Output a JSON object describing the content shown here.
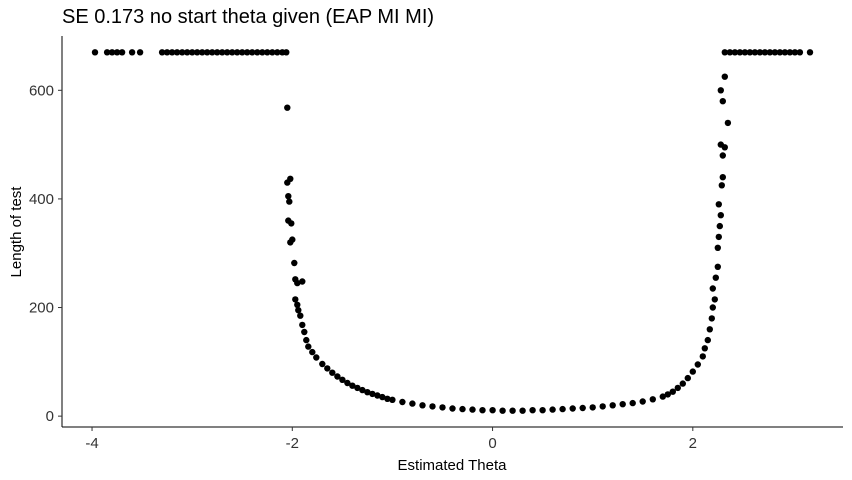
{
  "chart_data": {
    "type": "scatter",
    "title": "SE 0.173 no start theta given (EAP MI MI)",
    "xlabel": "Estimated Theta",
    "ylabel": "Length of test",
    "xlim": [
      -4.3,
      3.5
    ],
    "ylim": [
      -20,
      700
    ],
    "xticks": [
      "-4",
      "-2",
      "0",
      "2"
    ],
    "yticks": [
      "0",
      "200",
      "400",
      "600"
    ],
    "grid": false,
    "legend": "none",
    "point_color": "#000000",
    "shape": "U-shaped: test length near 10 for theta in [-1, 1], rising steeply near theta = -2 and theta = 2, capped at 670 beyond",
    "points": [
      [
        -3.97,
        670
      ],
      [
        -3.85,
        670
      ],
      [
        -3.8,
        670
      ],
      [
        -3.75,
        670
      ],
      [
        -3.7,
        670
      ],
      [
        -3.6,
        670
      ],
      [
        -3.52,
        670
      ],
      [
        -3.3,
        670
      ],
      [
        -3.25,
        670
      ],
      [
        -3.2,
        670
      ],
      [
        -3.15,
        670
      ],
      [
        -3.1,
        670
      ],
      [
        -3.05,
        670
      ],
      [
        -3.0,
        670
      ],
      [
        -2.95,
        670
      ],
      [
        -2.9,
        670
      ],
      [
        -2.85,
        670
      ],
      [
        -2.8,
        670
      ],
      [
        -2.75,
        670
      ],
      [
        -2.7,
        670
      ],
      [
        -2.65,
        670
      ],
      [
        -2.6,
        670
      ],
      [
        -2.55,
        670
      ],
      [
        -2.5,
        670
      ],
      [
        -2.45,
        670
      ],
      [
        -2.4,
        670
      ],
      [
        -2.35,
        670
      ],
      [
        -2.3,
        670
      ],
      [
        -2.25,
        670
      ],
      [
        -2.2,
        670
      ],
      [
        -2.15,
        670
      ],
      [
        -2.1,
        670
      ],
      [
        -2.06,
        670
      ],
      [
        -2.05,
        568
      ],
      [
        -2.05,
        430
      ],
      [
        -2.02,
        437
      ],
      [
        -2.04,
        405
      ],
      [
        -2.03,
        395
      ],
      [
        -2.04,
        360
      ],
      [
        -2.01,
        355
      ],
      [
        -2.0,
        325
      ],
      [
        -2.02,
        320
      ],
      [
        -1.98,
        282
      ],
      [
        -1.97,
        252
      ],
      [
        -1.95,
        245
      ],
      [
        -1.9,
        248
      ],
      [
        -1.97,
        215
      ],
      [
        -1.95,
        205
      ],
      [
        -1.94,
        195
      ],
      [
        -1.92,
        185
      ],
      [
        -1.9,
        168
      ],
      [
        -1.88,
        155
      ],
      [
        -1.86,
        140
      ],
      [
        -1.84,
        128
      ],
      [
        -1.8,
        118
      ],
      [
        -1.76,
        108
      ],
      [
        -1.7,
        96
      ],
      [
        -1.65,
        88
      ],
      [
        -1.6,
        80
      ],
      [
        -1.55,
        73
      ],
      [
        -1.5,
        67
      ],
      [
        -1.45,
        61
      ],
      [
        -1.4,
        56
      ],
      [
        -1.35,
        52
      ],
      [
        -1.3,
        48
      ],
      [
        -1.25,
        44
      ],
      [
        -1.2,
        41
      ],
      [
        -1.15,
        38
      ],
      [
        -1.1,
        35
      ],
      [
        -1.05,
        32
      ],
      [
        -1.0,
        30
      ],
      [
        -0.9,
        26
      ],
      [
        -0.8,
        23
      ],
      [
        -0.7,
        20
      ],
      [
        -0.6,
        18
      ],
      [
        -0.5,
        16
      ],
      [
        -0.4,
        14
      ],
      [
        -0.3,
        13
      ],
      [
        -0.2,
        12
      ],
      [
        -0.1,
        11
      ],
      [
        0.0,
        11
      ],
      [
        0.1,
        10
      ],
      [
        0.2,
        10
      ],
      [
        0.3,
        10
      ],
      [
        0.4,
        11
      ],
      [
        0.5,
        11
      ],
      [
        0.6,
        12
      ],
      [
        0.7,
        13
      ],
      [
        0.8,
        14
      ],
      [
        0.9,
        15
      ],
      [
        1.0,
        16
      ],
      [
        1.1,
        18
      ],
      [
        1.2,
        20
      ],
      [
        1.3,
        22
      ],
      [
        1.4,
        24
      ],
      [
        1.5,
        27
      ],
      [
        1.6,
        31
      ],
      [
        1.7,
        36
      ],
      [
        1.75,
        40
      ],
      [
        1.8,
        45
      ],
      [
        1.85,
        52
      ],
      [
        1.9,
        60
      ],
      [
        1.95,
        70
      ],
      [
        2.0,
        82
      ],
      [
        2.05,
        95
      ],
      [
        2.1,
        110
      ],
      [
        2.12,
        125
      ],
      [
        2.15,
        140
      ],
      [
        2.17,
        160
      ],
      [
        2.19,
        180
      ],
      [
        2.2,
        200
      ],
      [
        2.22,
        215
      ],
      [
        2.2,
        235
      ],
      [
        2.23,
        255
      ],
      [
        2.25,
        275
      ],
      [
        2.25,
        310
      ],
      [
        2.26,
        330
      ],
      [
        2.27,
        350
      ],
      [
        2.28,
        370
      ],
      [
        2.26,
        390
      ],
      [
        2.29,
        425
      ],
      [
        2.3,
        440
      ],
      [
        2.3,
        480
      ],
      [
        2.28,
        500
      ],
      [
        2.32,
        495
      ],
      [
        2.35,
        540
      ],
      [
        2.3,
        580
      ],
      [
        2.28,
        600
      ],
      [
        2.32,
        625
      ],
      [
        2.32,
        670
      ],
      [
        2.37,
        670
      ],
      [
        2.42,
        670
      ],
      [
        2.47,
        670
      ],
      [
        2.52,
        670
      ],
      [
        2.57,
        670
      ],
      [
        2.62,
        670
      ],
      [
        2.67,
        670
      ],
      [
        2.72,
        670
      ],
      [
        2.77,
        670
      ],
      [
        2.82,
        670
      ],
      [
        2.87,
        670
      ],
      [
        2.92,
        670
      ],
      [
        2.97,
        670
      ],
      [
        3.02,
        670
      ],
      [
        3.07,
        670
      ],
      [
        3.17,
        670
      ]
    ]
  }
}
